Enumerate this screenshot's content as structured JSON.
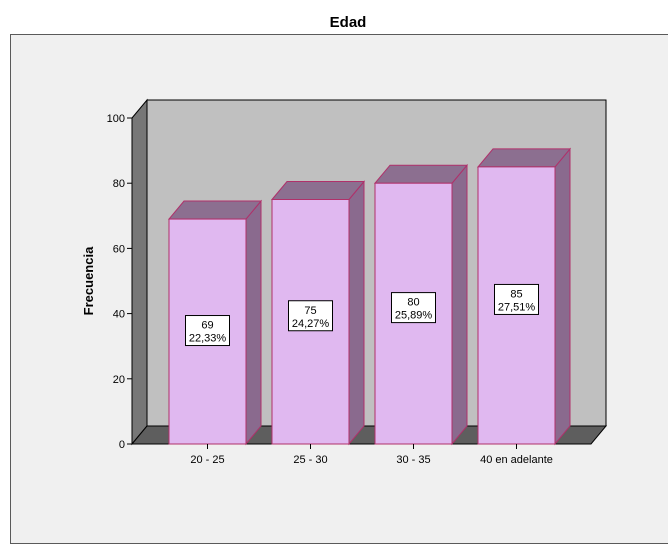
{
  "chart_data": {
    "type": "bar",
    "title": "Edad",
    "xlabel": "",
    "ylabel": "Frecuencia",
    "categories": [
      "20 - 25",
      "25 - 30",
      "30 - 35",
      "40 en adelante"
    ],
    "values": [
      69,
      75,
      80,
      85
    ],
    "percent_labels": [
      "22,33%",
      "24,27%",
      "25,89%",
      "27,51%"
    ],
    "ylim": [
      0,
      100
    ],
    "yticks": [
      0,
      20,
      40,
      60,
      80,
      100
    ],
    "grid": false,
    "legend": "none",
    "style": "3d",
    "colors": {
      "bar_front": "#e0b8f0",
      "bar_side": "#8a6a8e",
      "bar_top": "#8c6f90",
      "bar_edge": "#b0306a",
      "back_wall": "#c0c0c0",
      "side_wall": "#777777",
      "floor": "#5e5e5e",
      "frame_bg": "#f0f0f0"
    }
  }
}
